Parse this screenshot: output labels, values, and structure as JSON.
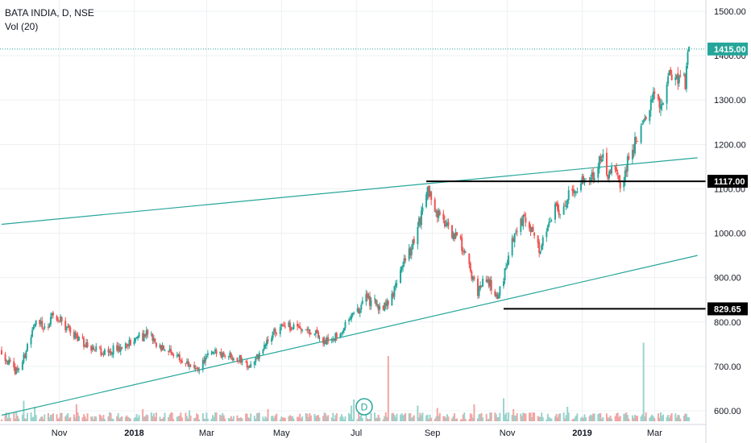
{
  "legend": {
    "symbol": "BATA INDIA, D, NSE",
    "volume": "Vol (20)"
  },
  "dividend_marker": "D",
  "colors": {
    "up": "#26a69a",
    "down": "#ef5350",
    "vol_up": "#9ad3cd",
    "vol_down": "#f3a5a4",
    "trendline": "#26a69a",
    "grid": "#eef0f3",
    "last_price_bg": "#26a69a",
    "level_bg": "#000000"
  },
  "chart_data": {
    "type": "candlestick",
    "title": "BATA INDIA, D, NSE",
    "y_axis": {
      "range": [
        588,
        1530
      ],
      "ticks": [
        600,
        700,
        800,
        900,
        1000,
        1100,
        1200,
        1300,
        1400,
        1500
      ],
      "tick_labels": [
        "600.00",
        "700.00",
        "800.00",
        "900.00",
        "1000.00",
        "1100.00",
        "1200.00",
        "1300.00",
        "1400.00",
        "1500.00"
      ]
    },
    "x_axis": {
      "range": [
        "2017-09-15",
        "2019-03-29"
      ],
      "ticks": [
        {
          "label": "Nov",
          "date": "2017-11-01",
          "major": false
        },
        {
          "label": "2018",
          "date": "2018-01-01",
          "major": true
        },
        {
          "label": "Mar",
          "date": "2018-03-01",
          "major": false
        },
        {
          "label": "May",
          "date": "2018-05-01",
          "major": false
        },
        {
          "label": "Jul",
          "date": "2018-07-01",
          "major": false
        },
        {
          "label": "Sep",
          "date": "2018-09-01",
          "major": false
        },
        {
          "label": "Nov",
          "date": "2018-11-01",
          "major": false
        },
        {
          "label": "2019",
          "date": "2019-01-01",
          "major": true
        },
        {
          "label": "Mar",
          "date": "2019-03-01",
          "major": false
        }
      ]
    },
    "price_path": [
      [
        "2017-09-15",
        735
      ],
      [
        "2017-09-25",
        690
      ],
      [
        "2017-10-01",
        700
      ],
      [
        "2017-10-12",
        800
      ],
      [
        "2017-10-22",
        790
      ],
      [
        "2017-10-28",
        820
      ],
      [
        "2017-11-03",
        805
      ],
      [
        "2017-11-10",
        775
      ],
      [
        "2017-11-22",
        752
      ],
      [
        "2017-12-05",
        735
      ],
      [
        "2017-12-20",
        740
      ],
      [
        "2017-12-31",
        760
      ],
      [
        "2018-01-12",
        772
      ],
      [
        "2018-01-22",
        745
      ],
      [
        "2018-02-05",
        720
      ],
      [
        "2018-02-12",
        710
      ],
      [
        "2018-02-20",
        688
      ],
      [
        "2018-03-01",
        720
      ],
      [
        "2018-03-10",
        732
      ],
      [
        "2018-03-25",
        722
      ],
      [
        "2018-04-06",
        702
      ],
      [
        "2018-04-14",
        730
      ],
      [
        "2018-04-25",
        780
      ],
      [
        "2018-05-12",
        795
      ],
      [
        "2018-05-25",
        780
      ],
      [
        "2018-06-05",
        760
      ],
      [
        "2018-06-14",
        765
      ],
      [
        "2018-06-22",
        795
      ],
      [
        "2018-07-01",
        815
      ],
      [
        "2018-07-08",
        855
      ],
      [
        "2018-07-20",
        835
      ],
      [
        "2018-07-28",
        840
      ],
      [
        "2018-08-01",
        870
      ],
      [
        "2018-08-08",
        935
      ],
      [
        "2018-08-15",
        965
      ],
      [
        "2018-08-20",
        1010
      ],
      [
        "2018-08-27",
        1095
      ],
      [
        "2018-09-03",
        1060
      ],
      [
        "2018-09-10",
        1025
      ],
      [
        "2018-09-20",
        990
      ],
      [
        "2018-09-27",
        965
      ],
      [
        "2018-10-03",
        900
      ],
      [
        "2018-10-08",
        865
      ],
      [
        "2018-10-14",
        905
      ],
      [
        "2018-10-20",
        875
      ],
      [
        "2018-10-24",
        850
      ],
      [
        "2018-10-29",
        900
      ],
      [
        "2018-11-05",
        985
      ],
      [
        "2018-11-12",
        1035
      ],
      [
        "2018-11-20",
        1010
      ],
      [
        "2018-11-28",
        960
      ],
      [
        "2018-12-03",
        1010
      ],
      [
        "2018-12-10",
        1060
      ],
      [
        "2018-12-16",
        1040
      ],
      [
        "2018-12-21",
        1095
      ],
      [
        "2019-01-01",
        1115
      ],
      [
        "2019-01-10",
        1135
      ],
      [
        "2019-01-17",
        1170
      ],
      [
        "2019-01-23",
        1125
      ],
      [
        "2019-01-28",
        1150
      ],
      [
        "2019-02-02",
        1090
      ],
      [
        "2019-02-09",
        1185
      ],
      [
        "2019-02-16",
        1215
      ],
      [
        "2019-02-23",
        1270
      ],
      [
        "2019-02-28",
        1305
      ],
      [
        "2019-03-03",
        1285
      ],
      [
        "2019-03-08",
        1305
      ],
      [
        "2019-03-14",
        1360
      ],
      [
        "2019-03-19",
        1345
      ],
      [
        "2019-03-23",
        1365
      ],
      [
        "2019-03-26",
        1340
      ],
      [
        "2019-03-29",
        1413
      ]
    ],
    "volume_spikes": [
      {
        "date": "2017-10-03",
        "value": 0.17
      },
      {
        "date": "2017-10-12",
        "value": 0.12
      },
      {
        "date": "2017-11-15",
        "value": 0.14
      },
      {
        "date": "2017-12-10",
        "value": 0.18
      },
      {
        "date": "2018-01-08",
        "value": 0.1
      },
      {
        "date": "2018-02-15",
        "value": 0.09
      },
      {
        "date": "2018-04-20",
        "value": 0.1
      },
      {
        "date": "2018-06-02",
        "value": 0.09
      },
      {
        "date": "2018-06-27",
        "value": 0.13
      },
      {
        "date": "2018-06-29",
        "value": 0.18
      },
      {
        "date": "2018-06-30",
        "value": 0.25
      },
      {
        "date": "2018-07-27",
        "value": 0.54
      },
      {
        "date": "2018-08-05",
        "value": 0.15
      },
      {
        "date": "2018-08-20",
        "value": 0.13
      },
      {
        "date": "2018-09-05",
        "value": 0.11
      },
      {
        "date": "2018-10-05",
        "value": 0.14
      },
      {
        "date": "2018-10-29",
        "value": 0.19
      },
      {
        "date": "2018-11-06",
        "value": 0.1
      },
      {
        "date": "2018-12-20",
        "value": 0.12
      },
      {
        "date": "2019-02-10",
        "value": 0.1
      },
      {
        "date": "2019-02-20",
        "value": 0.65
      },
      {
        "date": "2019-03-24",
        "value": 0.12
      }
    ],
    "levels": [
      {
        "value": 1117.0,
        "label": "1117.00",
        "from": "2018-08-27",
        "kind": "resistance"
      },
      {
        "value": 829.65,
        "label": "829.65",
        "from": "2018-10-29",
        "kind": "support"
      }
    ],
    "trendlines": [
      {
        "from": [
          "2017-09-15",
          1020
        ],
        "to": [
          "2019-04-05",
          1170
        ]
      },
      {
        "from": [
          "2017-09-15",
          590
        ],
        "to": [
          "2019-04-05",
          950
        ]
      }
    ],
    "last_price": {
      "value": 1415.0,
      "label": "1415.00"
    }
  }
}
